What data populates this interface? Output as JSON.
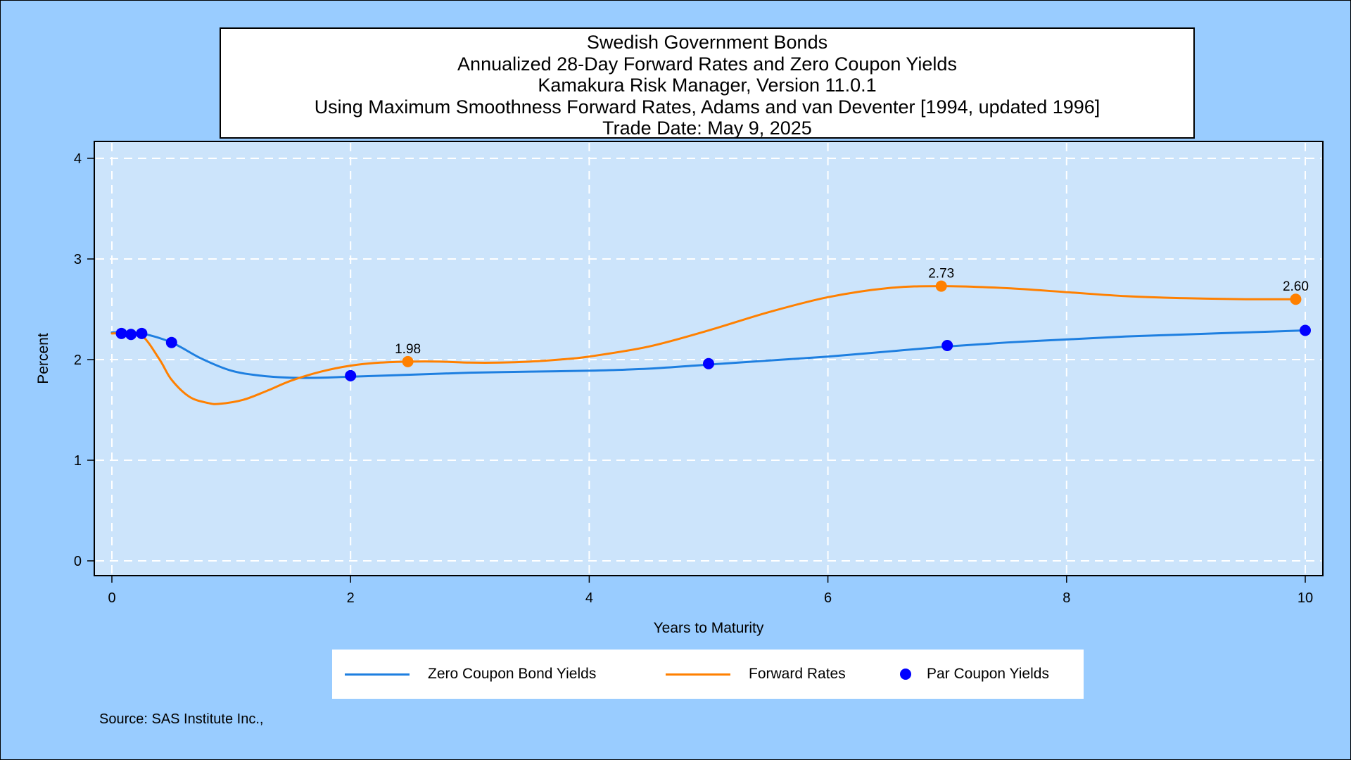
{
  "title_lines": [
    "Swedish Government Bonds",
    "Annualized 28-Day Forward Rates and Zero Coupon Yields",
    "Kamakura Risk Manager, Version 11.0.1",
    "Using Maximum Smoothness Forward Rates, Adams and van Deventer [1994, updated 1996]",
    "Trade Date: May 9, 2025"
  ],
  "source": "Source: SAS Institute Inc.,",
  "colors": {
    "page_background": "#99ccff",
    "plot_background": "#cce4fb",
    "zero_line": "#1e7fe0",
    "forward_line": "#ff8000",
    "par_dot": "#0000ff",
    "grid": "#ffffff"
  },
  "chart_data": {
    "type": "line",
    "xlabel": "Years to Maturity",
    "ylabel": "Percent",
    "xlim": [
      0,
      10
    ],
    "ylim": [
      0,
      4
    ],
    "xticks": [
      0,
      2,
      4,
      6,
      8,
      10
    ],
    "yticks": [
      0,
      1,
      2,
      3,
      4
    ],
    "grid": true,
    "legend_position": "bottom",
    "series": [
      {
        "name": "Zero Coupon Bond Yields",
        "kind": "line",
        "color": "#1e7fe0",
        "x": [
          0,
          0.08,
          0.25,
          0.5,
          0.75,
          1.0,
          1.25,
          1.5,
          1.75,
          2.0,
          2.5,
          3.0,
          3.5,
          4.0,
          4.5,
          5.0,
          5.5,
          6.0,
          6.5,
          7.0,
          7.5,
          8.0,
          8.5,
          9.0,
          9.5,
          10.0
        ],
        "y": [
          2.27,
          2.27,
          2.26,
          2.17,
          2.01,
          1.89,
          1.84,
          1.82,
          1.82,
          1.83,
          1.85,
          1.87,
          1.88,
          1.89,
          1.91,
          1.95,
          1.99,
          2.03,
          2.08,
          2.13,
          2.17,
          2.2,
          2.23,
          2.25,
          2.27,
          2.29
        ]
      },
      {
        "name": "Forward Rates",
        "kind": "line",
        "color": "#ff8000",
        "x": [
          0,
          0.1,
          0.25,
          0.4,
          0.5,
          0.65,
          0.8,
          0.9,
          1.1,
          1.3,
          1.5,
          1.75,
          2.0,
          2.25,
          2.5,
          2.75,
          3.0,
          3.25,
          3.5,
          3.75,
          4.0,
          4.5,
          5.0,
          5.5,
          6.0,
          6.5,
          6.95,
          7.5,
          8.0,
          8.5,
          9.0,
          9.5,
          9.9
        ],
        "y": [
          2.26,
          2.26,
          2.24,
          2.0,
          1.8,
          1.63,
          1.57,
          1.56,
          1.6,
          1.69,
          1.79,
          1.88,
          1.94,
          1.97,
          1.98,
          1.98,
          1.97,
          1.97,
          1.98,
          2.0,
          2.03,
          2.13,
          2.29,
          2.47,
          2.62,
          2.71,
          2.73,
          2.71,
          2.67,
          2.63,
          2.61,
          2.6,
          2.6
        ]
      },
      {
        "name": "Par Coupon Yields",
        "kind": "scatter",
        "color": "#0000ff",
        "x": [
          0.08,
          0.16,
          0.25,
          0.5,
          2.0,
          5.0,
          7.0,
          10.0
        ],
        "y": [
          2.26,
          2.25,
          2.26,
          2.17,
          1.84,
          1.96,
          2.14,
          2.29
        ]
      }
    ],
    "annotations": [
      {
        "x": 2.48,
        "y": 1.98,
        "text": "1.98",
        "series": "Forward Rates"
      },
      {
        "x": 6.95,
        "y": 2.73,
        "text": "2.73",
        "series": "Forward Rates"
      },
      {
        "x": 9.92,
        "y": 2.6,
        "text": "2.60",
        "series": "Forward Rates"
      }
    ]
  }
}
